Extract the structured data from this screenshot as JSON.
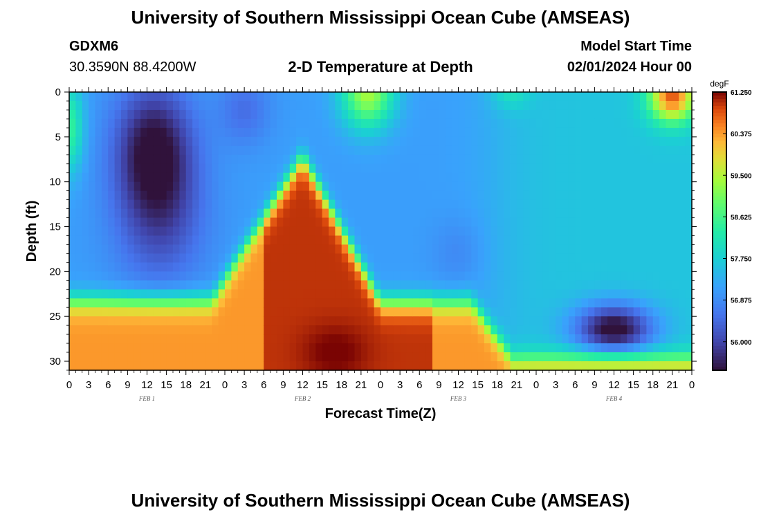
{
  "header": {
    "title": "University of Southern Mississippi Ocean Cube (AMSEAS)",
    "station_id": "GDXM6",
    "station_coords": "30.3590N  88.4200W",
    "product": "2-D Temperature at Depth",
    "start_label": "Model Start Time",
    "start_value": "02/01/2024 Hour 00"
  },
  "footer": {
    "title": "University of Southern Mississippi Ocean Cube (AMSEAS)"
  },
  "chart_data": {
    "type": "heatmap",
    "xlabel": "Forecast Time(Z)",
    "ylabel": "Depth (ft)",
    "x_range_hours": [
      0,
      96
    ],
    "y_range_ft": [
      0,
      31
    ],
    "y_inverted": true,
    "x_tick_labels": [
      "0",
      "3",
      "6",
      "9",
      "12",
      "15",
      "18",
      "21",
      "0",
      "3",
      "6",
      "9",
      "12",
      "15",
      "18",
      "21",
      "0",
      "3",
      "6",
      "9",
      "12",
      "15",
      "18",
      "21",
      "0",
      "3",
      "6",
      "9",
      "12",
      "15",
      "18",
      "21",
      "0"
    ],
    "y_ticks": [
      0,
      5,
      10,
      15,
      20,
      25,
      30
    ],
    "day_labels": [
      {
        "label": "FEB 1",
        "hour": 12
      },
      {
        "label": "FEB 2",
        "hour": 36
      },
      {
        "label": "FEB 3",
        "hour": 60
      },
      {
        "label": "FEB 4",
        "hour": 84
      }
    ],
    "colorbar": {
      "unit": "degF",
      "min": 55.4,
      "max": 61.25,
      "ticks": [
        61.25,
        60.375,
        59.5,
        58.625,
        57.75,
        56.875,
        56.0
      ],
      "tick_labels": [
        "61.250",
        "60.375",
        "59.500",
        "58.625",
        "57.750",
        "56.875",
        "56.000"
      ],
      "colormap": "turbo"
    },
    "field_structure": {
      "description_units": "hours since model start vs depth in ft, values in degF",
      "background_temp": 57.1,
      "features": [
        {
          "hour": 0,
          "depth": 4,
          "temp": 58.4
        },
        {
          "hour": 13,
          "depth": 5,
          "temp": 55.7
        },
        {
          "hour": 36,
          "depth": 22,
          "temp": 61.1
        },
        {
          "hour": 41,
          "depth": 29,
          "temp": 61.2
        },
        {
          "hour": 44,
          "depth": 1,
          "temp": 59.3
        },
        {
          "hour": 84,
          "depth": 26.5,
          "temp": 55.5
        },
        {
          "hour": 92,
          "depth": 1,
          "temp": 60.6
        },
        {
          "hour": 3,
          "depth": 28,
          "temp": 60.3
        }
      ]
    }
  }
}
